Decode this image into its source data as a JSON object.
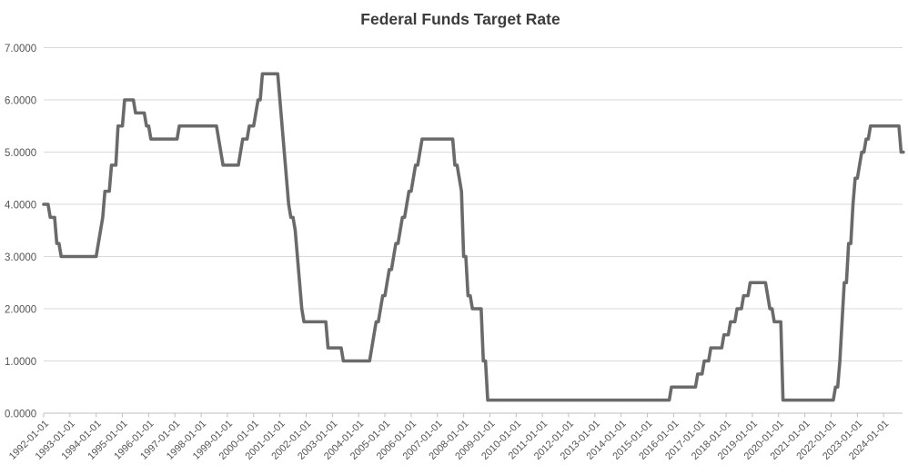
{
  "chart_data": {
    "type": "line",
    "title": "Federal Funds Target Rate",
    "subtitle": "",
    "xlabel": "",
    "ylabel": "",
    "legend": "none",
    "grid": "horizontal",
    "line_style": "step (monthly sampled)",
    "ylim": [
      0,
      7
    ],
    "y_tick_labels": [
      "0.0000",
      "1.0000",
      "2.0000",
      "3.0000",
      "4.0000",
      "5.0000",
      "6.0000",
      "7.0000"
    ],
    "x_tick_labels": [
      "1992-01-01",
      "1993-01-01",
      "1994-01-01",
      "1995-01-01",
      "1996-01-01",
      "1997-01-01",
      "1998-01-01",
      "1999-01-01",
      "2000-01-01",
      "2001-01-01",
      "2002-01-01",
      "2003-01-01",
      "2004-01-01",
      "2005-01-01",
      "2006-01-01",
      "2007-01-01",
      "2008-01-01",
      "2009-01-01",
      "2010-01-01",
      "2011-01-01",
      "2012-01-01",
      "2013-01-01",
      "2014-01-01",
      "2015-01-01",
      "2016-01-01",
      "2017-01-01",
      "2018-01-01",
      "2019-01-01",
      "2020-01-01",
      "2021-01-01",
      "2022-01-01",
      "2023-01-01",
      "2024-01-01"
    ],
    "x_start_month": "1992-01",
    "x_end_month": "2024-10",
    "series_name": "Federal Funds Target Rate (%)",
    "rate_changes": [
      [
        "1992-01",
        4.0
      ],
      [
        "1992-04",
        3.75
      ],
      [
        "1992-07",
        3.25
      ],
      [
        "1992-09",
        3.0
      ],
      [
        "1994-02",
        3.25
      ],
      [
        "1994-03",
        3.5
      ],
      [
        "1994-04",
        3.75
      ],
      [
        "1994-05",
        4.25
      ],
      [
        "1994-08",
        4.75
      ],
      [
        "1994-11",
        5.5
      ],
      [
        "1995-02",
        6.0
      ],
      [
        "1995-07",
        5.75
      ],
      [
        "1995-12",
        5.5
      ],
      [
        "1996-02",
        5.25
      ],
      [
        "1997-03",
        5.5
      ],
      [
        "1998-09",
        5.25
      ],
      [
        "1998-10",
        5.0
      ],
      [
        "1998-11",
        4.75
      ],
      [
        "1999-07",
        5.0
      ],
      [
        "1999-08",
        5.25
      ],
      [
        "1999-11",
        5.5
      ],
      [
        "2000-02",
        5.75
      ],
      [
        "2000-03",
        6.0
      ],
      [
        "2000-05",
        6.5
      ],
      [
        "2001-01",
        6.0
      ],
      [
        "2001-02",
        5.5
      ],
      [
        "2001-03",
        5.0
      ],
      [
        "2001-04",
        4.5
      ],
      [
        "2001-05",
        4.0
      ],
      [
        "2001-06",
        3.75
      ],
      [
        "2001-08",
        3.5
      ],
      [
        "2001-09",
        3.0
      ],
      [
        "2001-10",
        2.5
      ],
      [
        "2001-11",
        2.0
      ],
      [
        "2001-12",
        1.75
      ],
      [
        "2002-11",
        1.25
      ],
      [
        "2003-06",
        1.0
      ],
      [
        "2004-07",
        1.25
      ],
      [
        "2004-08",
        1.5
      ],
      [
        "2004-09",
        1.75
      ],
      [
        "2004-11",
        2.0
      ],
      [
        "2004-12",
        2.25
      ],
      [
        "2005-02",
        2.5
      ],
      [
        "2005-03",
        2.75
      ],
      [
        "2005-05",
        3.0
      ],
      [
        "2005-06",
        3.25
      ],
      [
        "2005-08",
        3.5
      ],
      [
        "2005-09",
        3.75
      ],
      [
        "2005-11",
        4.0
      ],
      [
        "2005-12",
        4.25
      ],
      [
        "2006-02",
        4.5
      ],
      [
        "2006-03",
        4.75
      ],
      [
        "2006-05",
        5.0
      ],
      [
        "2006-06",
        5.25
      ],
      [
        "2007-09",
        4.75
      ],
      [
        "2007-11",
        4.5
      ],
      [
        "2007-12",
        4.25
      ],
      [
        "2008-01",
        3.0
      ],
      [
        "2008-03",
        2.25
      ],
      [
        "2008-05",
        2.0
      ],
      [
        "2008-10",
        1.0
      ],
      [
        "2008-12",
        0.25
      ],
      [
        "2015-12",
        0.5
      ],
      [
        "2016-12",
        0.75
      ],
      [
        "2017-03",
        1.0
      ],
      [
        "2017-06",
        1.25
      ],
      [
        "2017-12",
        1.5
      ],
      [
        "2018-03",
        1.75
      ],
      [
        "2018-06",
        2.0
      ],
      [
        "2018-09",
        2.25
      ],
      [
        "2018-12",
        2.5
      ],
      [
        "2019-08",
        2.25
      ],
      [
        "2019-09",
        2.0
      ],
      [
        "2019-11",
        1.75
      ],
      [
        "2020-03",
        0.25
      ],
      [
        "2022-03",
        0.5
      ],
      [
        "2022-05",
        1.0
      ],
      [
        "2022-06",
        1.75
      ],
      [
        "2022-07",
        2.5
      ],
      [
        "2022-09",
        3.25
      ],
      [
        "2022-11",
        4.0
      ],
      [
        "2022-12",
        4.5
      ],
      [
        "2023-02",
        4.75
      ],
      [
        "2023-03",
        5.0
      ],
      [
        "2023-05",
        5.25
      ],
      [
        "2023-07",
        5.5
      ],
      [
        "2024-09",
        5.0
      ]
    ],
    "colors": {
      "line": "#6a6a6a",
      "grid": "#d9d9d9",
      "axis": "#bfbfbf",
      "tick_label": "#545454",
      "title": "#3b3b3b",
      "background": "#ffffff"
    }
  }
}
